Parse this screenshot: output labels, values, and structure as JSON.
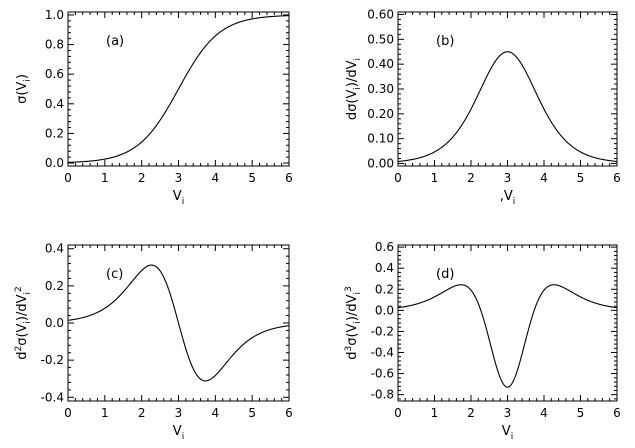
{
  "chart_data": [
    {
      "type": "line",
      "panel_label": "(a)",
      "xlabel": "V",
      "xlabel_sub": "i",
      "ylabel_parts": [
        {
          "t": "σ(V"
        },
        {
          "t": "i",
          "sub": true
        },
        {
          "t": ")"
        }
      ],
      "xlim": [
        0,
        6
      ],
      "ylim": [
        -0.02,
        1.02
      ],
      "xticks": [
        0,
        1,
        2,
        3,
        4,
        5,
        6
      ],
      "yticks": [
        0.0,
        0.2,
        0.4,
        0.6,
        0.8,
        1.0
      ],
      "ytick_labels": [
        "0.0",
        "0.2",
        "0.4",
        "0.6",
        "0.8",
        "1.0"
      ],
      "grid": false,
      "series": [
        {
          "function": "sigmoid",
          "derivative_order": 0,
          "center": 3,
          "slope": 1.8
        }
      ]
    },
    {
      "type": "line",
      "panel_label": "(b)",
      "xlabel": ",V",
      "xlabel_sub": "i",
      "ylabel_parts": [
        {
          "t": "dσ(V"
        },
        {
          "t": "i",
          "sub": true
        },
        {
          "t": ")/dV"
        },
        {
          "t": "i",
          "sub": true
        }
      ],
      "xlim": [
        0,
        6
      ],
      "ylim": [
        -0.01,
        0.61
      ],
      "xticks": [
        0,
        1,
        2,
        3,
        4,
        5,
        6
      ],
      "yticks": [
        0.0,
        0.1,
        0.2,
        0.3,
        0.4,
        0.5,
        0.6
      ],
      "ytick_labels": [
        "0.00",
        "0.10",
        "0.20",
        "0.30",
        "0.40",
        "0.50",
        "0.60"
      ],
      "grid": false,
      "series": [
        {
          "function": "sigmoid",
          "derivative_order": 1,
          "center": 3,
          "slope": 1.8
        }
      ]
    },
    {
      "type": "line",
      "panel_label": "(c)",
      "xlabel": "V",
      "xlabel_sub": "i",
      "ylabel_parts": [
        {
          "t": "d"
        },
        {
          "t": "2",
          "sup": true
        },
        {
          "t": "σ(V"
        },
        {
          "t": "i",
          "sub": true
        },
        {
          "t": ")/dV"
        },
        {
          "t": "i",
          "sub": true
        },
        {
          "t": "2",
          "sup": true
        }
      ],
      "xlim": [
        0,
        6
      ],
      "ylim": [
        -0.42,
        0.42
      ],
      "xticks": [
        0,
        1,
        2,
        3,
        4,
        5,
        6
      ],
      "yticks": [
        -0.4,
        -0.2,
        0.0,
        0.2,
        0.4
      ],
      "ytick_labels": [
        "-0.4",
        "-0.2",
        "0.0",
        "0.2",
        "0.4"
      ],
      "grid": false,
      "series": [
        {
          "function": "sigmoid",
          "derivative_order": 2,
          "center": 3,
          "slope": 1.8
        }
      ]
    },
    {
      "type": "line",
      "panel_label": "(d)",
      "xlabel": "V",
      "xlabel_sub": "i",
      "ylabel_parts": [
        {
          "t": "d"
        },
        {
          "t": "3",
          "sup": true
        },
        {
          "t": "σ(V"
        },
        {
          "t": "i",
          "sub": true
        },
        {
          "t": ")/dV"
        },
        {
          "t": "i",
          "sub": true
        },
        {
          "t": "3",
          "sup": true
        }
      ],
      "xlim": [
        0,
        6
      ],
      "ylim": [
        -0.86,
        0.62
      ],
      "xticks": [
        0,
        1,
        2,
        3,
        4,
        5,
        6
      ],
      "yticks": [
        -0.8,
        -0.6,
        -0.4,
        -0.2,
        0.0,
        0.2,
        0.4,
        0.6
      ],
      "ytick_labels": [
        "-0.8",
        "-0.6",
        "-0.4",
        "-0.2",
        "0.0",
        "0.2",
        "0.4",
        "0.6"
      ],
      "grid": false,
      "series": [
        {
          "function": "sigmoid",
          "derivative_order": 3,
          "center": 3,
          "slope": 1.8
        }
      ]
    }
  ]
}
